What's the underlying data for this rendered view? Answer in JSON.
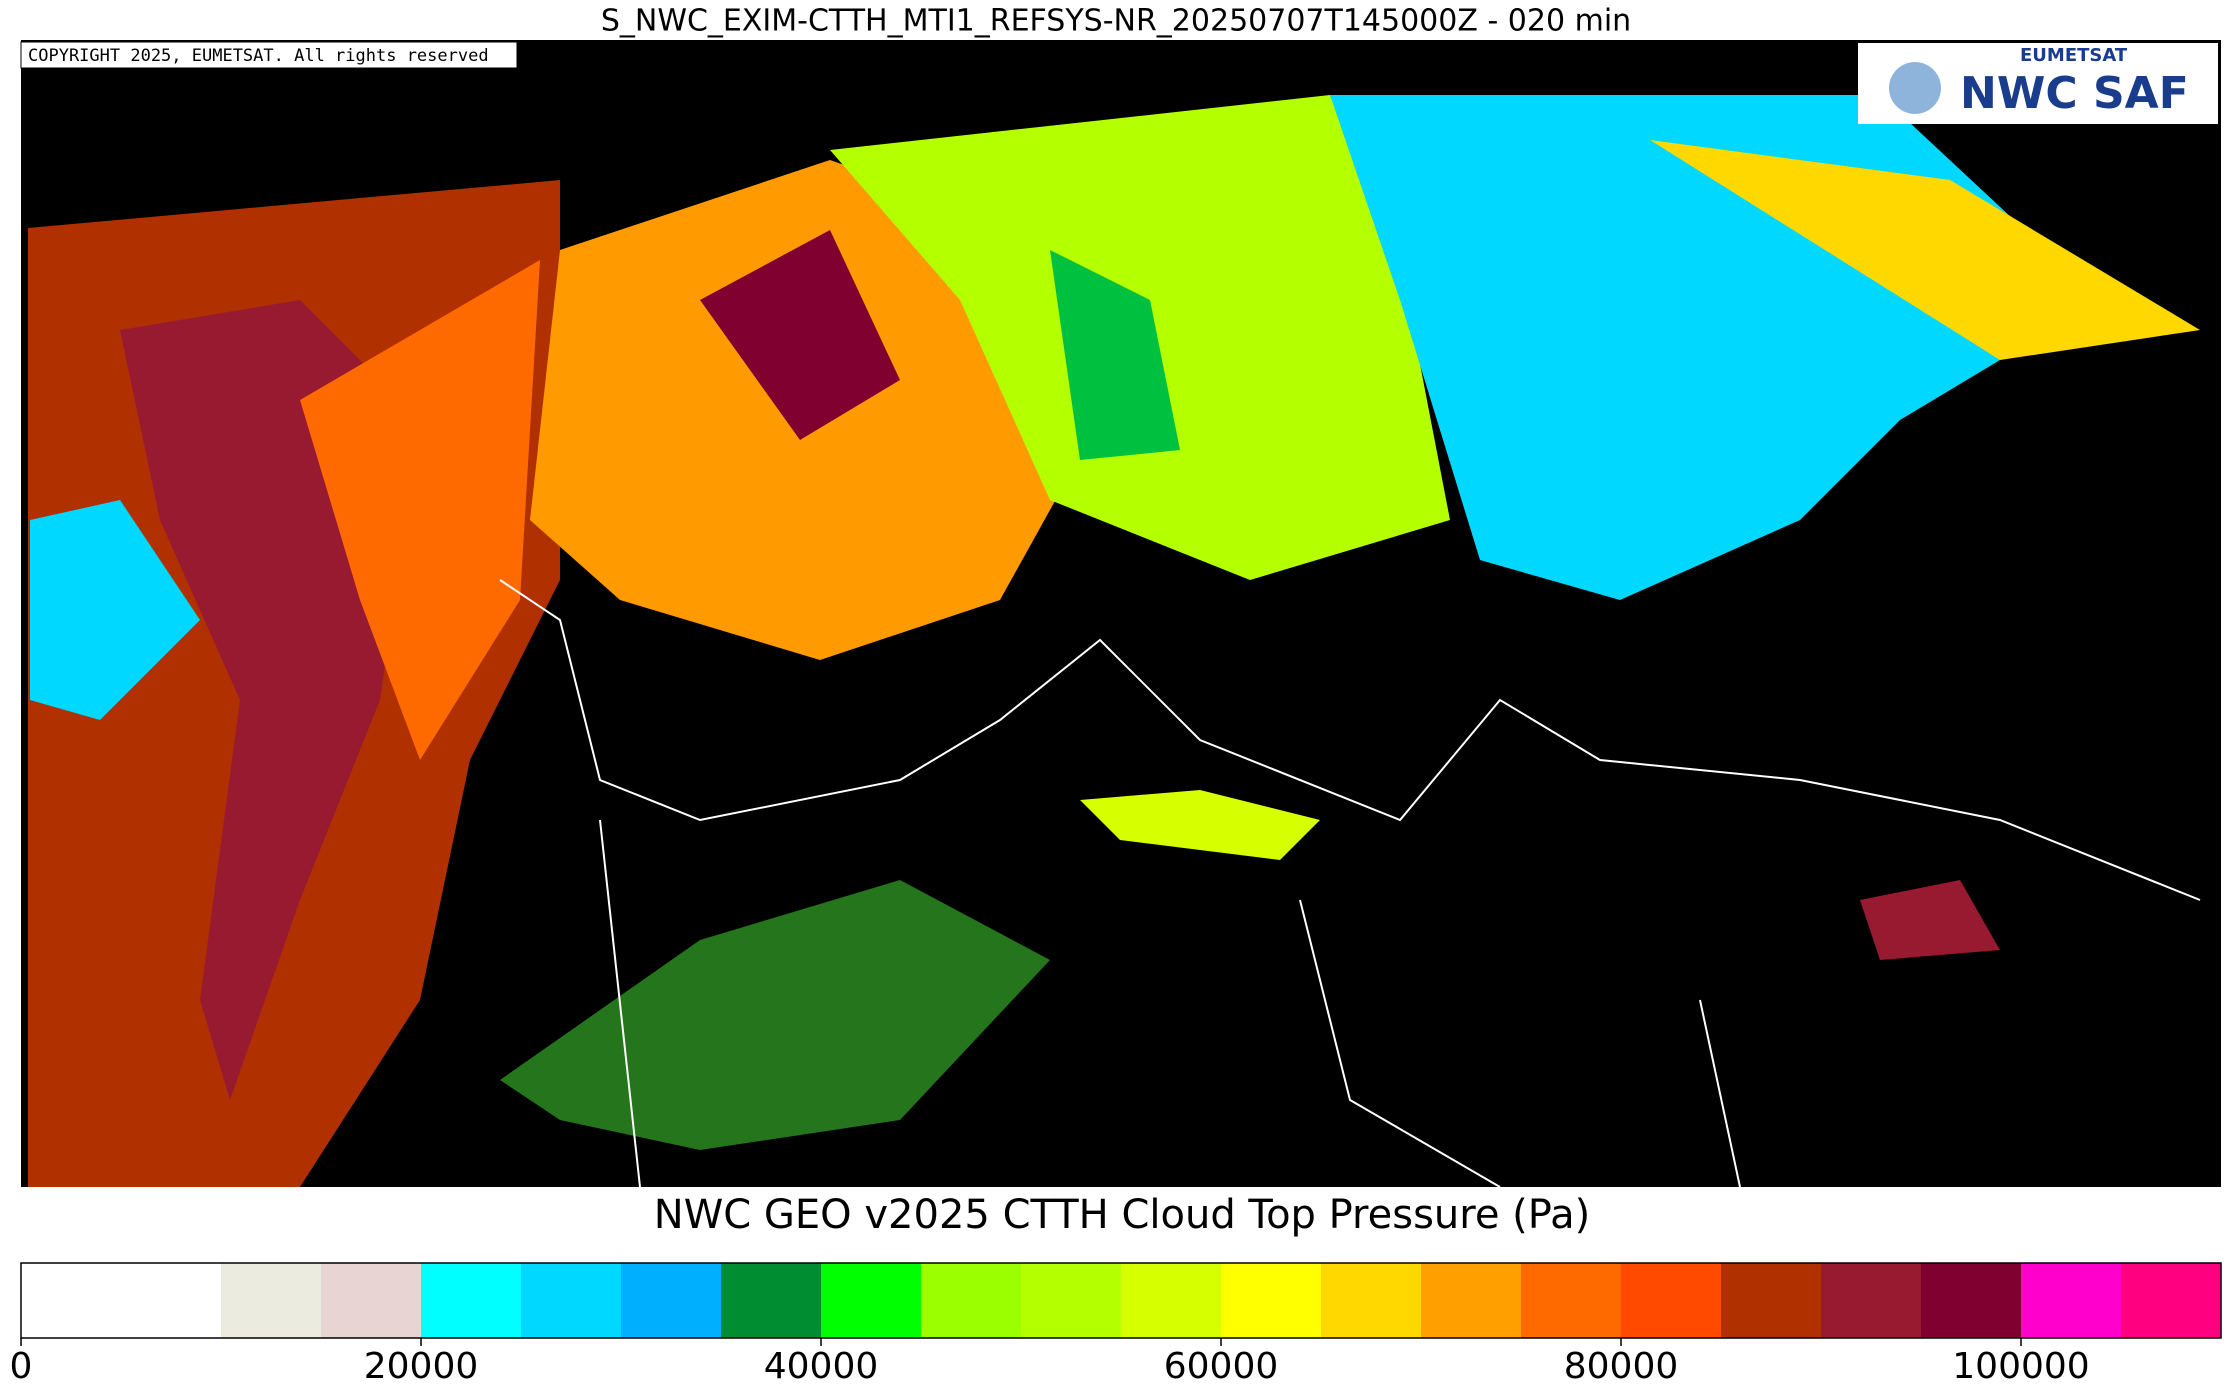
{
  "title": "S_NWC_EXIM-CTTH_MTI1_REFSYS-NR_20250707T145000Z - 020 min",
  "copyright": "COPYRIGHT 2025, EUMETSAT. All rights reserved",
  "logo": {
    "org": "EUMETSAT",
    "product": "NWC SAF"
  },
  "colorbar": {
    "title": "NWC GEO v2025 CTTH Cloud Top Pressure (Pa)",
    "bins": [
      0,
      10000,
      15000,
      20000,
      25000,
      30000,
      35000,
      40000,
      45000,
      50000,
      55000,
      60000,
      65000,
      70000,
      75000,
      80000,
      85000,
      90000,
      95000,
      100000,
      105000,
      110000
    ],
    "colors": [
      "#ffffff",
      "#ecebdf",
      "#e8d4d2",
      "#00ffff",
      "#00d8ff",
      "#00b0ff",
      "#008c30",
      "#00ff00",
      "#9cff00",
      "#b4ff00",
      "#d6ff00",
      "#ffff00",
      "#ffd800",
      "#ffa000",
      "#ff6a00",
      "#ff4a00",
      "#b03000",
      "#981a30",
      "#800030",
      "#ff00cc",
      "#ff0080"
    ],
    "ticks": [
      0,
      20000,
      40000,
      60000,
      80000,
      100000
    ]
  }
}
